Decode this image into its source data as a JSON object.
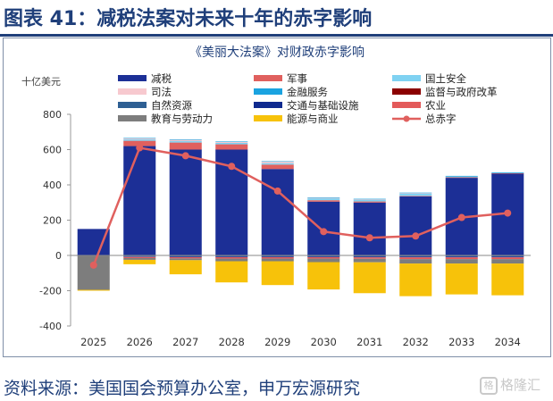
{
  "figure": {
    "title": "图表 41：减税法案对未来十年的赤字影响",
    "source": "资料来源：美国国会预算办公室，申万宏源研究",
    "watermark_icon": "格",
    "watermark_text": "格隆汇"
  },
  "chart_data": {
    "type": "bar",
    "stacked": true,
    "title": "《美丽大法案》对财政赤字影响",
    "unit_label": "十亿美元",
    "categories": [
      "2025",
      "2026",
      "2027",
      "2028",
      "2029",
      "2030",
      "2031",
      "2032",
      "2033",
      "2034"
    ],
    "ylim": [
      -400,
      800
    ],
    "yticks": [
      -400,
      -200,
      0,
      200,
      400,
      600,
      800
    ],
    "grid": false,
    "legend_position": "top",
    "series": [
      {
        "name": "减税",
        "color": "#1c2f96",
        "values": [
          150,
          620,
          600,
          600,
          490,
          305,
          300,
          335,
          440,
          465
        ]
      },
      {
        "name": "军事",
        "color": "#e0605e",
        "values": [
          0,
          30,
          40,
          30,
          25,
          8,
          6,
          3,
          3,
          1
        ]
      },
      {
        "name": "国土安全",
        "color": "#7fd2f2",
        "values": [
          0,
          8,
          8,
          8,
          8,
          10,
          10,
          12,
          6,
          3
        ]
      },
      {
        "name": "司法",
        "color": "#f7c9cf",
        "values": [
          0,
          5,
          7,
          5,
          8,
          3,
          2,
          3,
          0,
          0
        ]
      },
      {
        "name": "金融服务",
        "color": "#1aa3e0",
        "values": [
          0,
          3,
          3,
          3,
          3,
          3,
          3,
          3,
          2,
          2
        ]
      },
      {
        "name": "监督与政府改革",
        "color": "#8b0000",
        "values": [
          0,
          -3,
          -3,
          -3,
          -3,
          -3,
          -3,
          -3,
          -3,
          -3
        ]
      },
      {
        "name": "自然资源",
        "color": "#2e5f93",
        "values": [
          0,
          -3,
          -3,
          -3,
          -3,
          -3,
          -3,
          -3,
          -3,
          -3
        ]
      },
      {
        "name": "交通与基础设施",
        "color": "#0f2a8f",
        "values": [
          0,
          -3,
          -4,
          -4,
          -4,
          -4,
          -5,
          -5,
          -5,
          -5
        ]
      },
      {
        "name": "农业",
        "color": "#e35a5a",
        "values": [
          0,
          -6,
          -7,
          -8,
          -8,
          -8,
          -8,
          -10,
          -10,
          -10
        ]
      },
      {
        "name": "教育与劳动力",
        "color": "#7d7d7d",
        "values": [
          -195,
          -10,
          -10,
          -15,
          -15,
          -20,
          -20,
          -25,
          -25,
          -25
        ]
      },
      {
        "name": "能源与商业",
        "color": "#f7c20a",
        "values": [
          -5,
          -25,
          -80,
          -120,
          -135,
          -155,
          -175,
          -185,
          -175,
          -180
        ]
      }
    ],
    "total_line": {
      "name": "总赤字",
      "color": "#e0605e",
      "values": [
        -55,
        610,
        565,
        505,
        365,
        135,
        100,
        110,
        215,
        240
      ]
    }
  }
}
